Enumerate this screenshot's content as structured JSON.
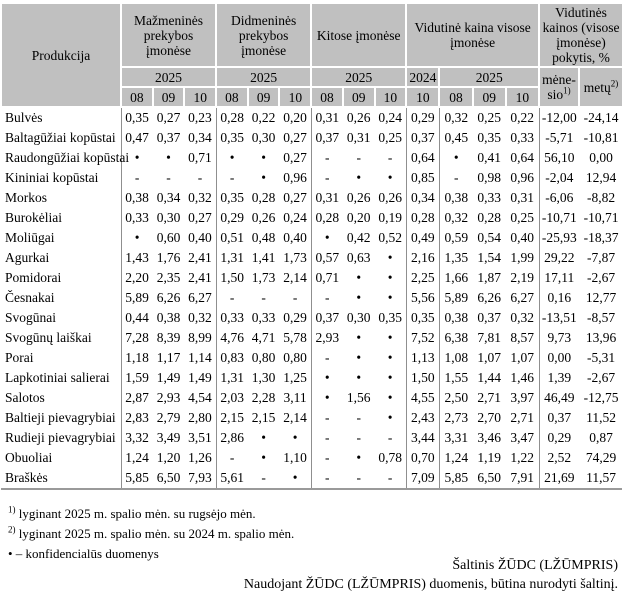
{
  "table": {
    "col_product": "Produkcija",
    "groups": [
      {
        "label": "Mažmeninės prekybos įmonėse"
      },
      {
        "label": "Didmeninės prekybos įmonėse"
      },
      {
        "label": "Kitose įmonėse"
      },
      {
        "label": "Vidutinė kaina visose įmonėse"
      },
      {
        "label": "Vidutinės kainos (visose įmonėse) pokytis, %"
      }
    ],
    "year_2025": "2025",
    "year_2024": "2024",
    "months": [
      "08",
      "09",
      "10"
    ],
    "month_10": "10",
    "change_month": {
      "line1": "mėne-",
      "line2": "sio",
      "sup": "1)"
    },
    "change_year": {
      "label": "metų",
      "sup": "2)"
    },
    "confidential_symbol": "•",
    "no_data_symbol": "-",
    "rows": [
      {
        "product": "Bulvės",
        "values": [
          "0,35",
          "0,27",
          "0,23",
          "0,28",
          "0,22",
          "0,20",
          "0,31",
          "0,26",
          "0,24",
          "0,29",
          "0,32",
          "0,25",
          "0,22",
          "-12,00",
          "-24,14"
        ]
      },
      {
        "product": "Baltagūžiai kopūstai",
        "values": [
          "0,47",
          "0,37",
          "0,34",
          "0,35",
          "0,30",
          "0,27",
          "0,37",
          "0,31",
          "0,25",
          "0,37",
          "0,45",
          "0,35",
          "0,33",
          "-5,71",
          "-10,81"
        ]
      },
      {
        "product": "Raudongūžiai kopūstai",
        "values": [
          "•",
          "•",
          "0,71",
          "•",
          "•",
          "0,27",
          "-",
          "-",
          "-",
          "0,64",
          "•",
          "0,41",
          "0,64",
          "56,10",
          "0,00"
        ]
      },
      {
        "product": "Kininiai kopūstai",
        "values": [
          "-",
          "-",
          "-",
          "-",
          "•",
          "0,96",
          "-",
          "•",
          "•",
          "0,85",
          "-",
          "0,98",
          "0,96",
          "-2,04",
          "12,94"
        ]
      },
      {
        "product": "Morkos",
        "values": [
          "0,38",
          "0,34",
          "0,32",
          "0,35",
          "0,28",
          "0,27",
          "0,31",
          "0,26",
          "0,26",
          "0,34",
          "0,38",
          "0,33",
          "0,31",
          "-6,06",
          "-8,82"
        ]
      },
      {
        "product": "Burokėliai",
        "values": [
          "0,33",
          "0,30",
          "0,27",
          "0,29",
          "0,26",
          "0,24",
          "0,28",
          "0,20",
          "0,19",
          "0,28",
          "0,32",
          "0,28",
          "0,25",
          "-10,71",
          "-10,71"
        ]
      },
      {
        "product": "Moliūgai",
        "values": [
          "•",
          "0,60",
          "0,40",
          "0,51",
          "0,48",
          "0,40",
          "•",
          "0,42",
          "0,52",
          "0,49",
          "0,59",
          "0,54",
          "0,40",
          "-25,93",
          "-18,37"
        ]
      },
      {
        "product": "Agurkai",
        "values": [
          "1,43",
          "1,76",
          "2,41",
          "1,31",
          "1,41",
          "1,73",
          "0,57",
          "0,63",
          "•",
          "2,16",
          "1,35",
          "1,54",
          "1,99",
          "29,22",
          "-7,87"
        ]
      },
      {
        "product": "Pomidorai",
        "values": [
          "2,20",
          "2,35",
          "2,41",
          "1,50",
          "1,73",
          "2,14",
          "0,71",
          "•",
          "•",
          "2,25",
          "1,66",
          "1,87",
          "2,19",
          "17,11",
          "-2,67"
        ]
      },
      {
        "product": "Česnakai",
        "values": [
          "5,89",
          "6,26",
          "6,27",
          "-",
          "-",
          "-",
          "-",
          "•",
          "•",
          "5,56",
          "5,89",
          "6,26",
          "6,27",
          "0,16",
          "12,77"
        ]
      },
      {
        "product": "Svogūnai",
        "values": [
          "0,44",
          "0,38",
          "0,32",
          "0,33",
          "0,33",
          "0,29",
          "0,37",
          "0,30",
          "0,35",
          "0,35",
          "0,38",
          "0,37",
          "0,32",
          "-13,51",
          "-8,57"
        ]
      },
      {
        "product": "Svogūnų laiškai",
        "values": [
          "7,28",
          "8,39",
          "8,99",
          "4,76",
          "4,71",
          "5,78",
          "2,93",
          "•",
          "•",
          "7,52",
          "6,38",
          "7,81",
          "8,57",
          "9,73",
          "13,96"
        ]
      },
      {
        "product": "Porai",
        "values": [
          "1,18",
          "1,17",
          "1,14",
          "0,83",
          "0,80",
          "0,80",
          "-",
          "•",
          "•",
          "1,13",
          "1,08",
          "1,07",
          "1,07",
          "0,00",
          "-5,31"
        ]
      },
      {
        "product": "Lapkotiniai salierai",
        "values": [
          "1,59",
          "1,49",
          "1,49",
          "1,31",
          "1,30",
          "1,25",
          "•",
          "•",
          "•",
          "1,50",
          "1,55",
          "1,44",
          "1,46",
          "1,39",
          "-2,67"
        ]
      },
      {
        "product": "Salotos",
        "values": [
          "2,87",
          "2,93",
          "4,54",
          "2,03",
          "2,28",
          "3,11",
          "•",
          "1,56",
          "•",
          "4,55",
          "2,50",
          "2,71",
          "3,97",
          "46,49",
          "-12,75"
        ]
      },
      {
        "product": "Baltieji pievagrybiai",
        "values": [
          "2,83",
          "2,79",
          "2,80",
          "2,15",
          "2,15",
          "2,14",
          "-",
          "-",
          "•",
          "2,43",
          "2,73",
          "2,70",
          "2,71",
          "0,37",
          "11,52"
        ]
      },
      {
        "product": "Rudieji pievagrybiai",
        "values": [
          "3,32",
          "3,49",
          "3,51",
          "2,86",
          "•",
          "•",
          "-",
          "-",
          "-",
          "3,44",
          "3,31",
          "3,46",
          "3,47",
          "0,29",
          "0,87"
        ]
      },
      {
        "product": "Obuoliai",
        "values": [
          "1,24",
          "1,20",
          "1,26",
          "-",
          "•",
          "1,10",
          "-",
          "•",
          "0,78",
          "0,70",
          "1,24",
          "1,19",
          "1,22",
          "2,52",
          "74,29"
        ]
      },
      {
        "product": "Braškės",
        "values": [
          "5,85",
          "6,50",
          "7,93",
          "5,61",
          "-",
          "•",
          "-",
          "-",
          "-",
          "7,09",
          "5,85",
          "6,50",
          "7,91",
          "21,69",
          "11,57"
        ]
      }
    ]
  },
  "footnotes": [
    {
      "sup": "1)",
      "text": " lyginant 2025 m. spalio mėn. su rugsėjo mėn."
    },
    {
      "sup": "2)",
      "text": " lyginant 2025 m. spalio mėn. su 2024 m. spalio mėn."
    },
    {
      "sup": "",
      "text": "• – konfidencialūs duomenys"
    }
  ],
  "source": {
    "line1": "Šaltinis  ŽŪDC (LŽŪMPRIS)",
    "line2": "Naudojant ŽŪDC (LŽŪMPRIS) duomenis, būtina nurodyti šaltinį."
  },
  "colors": {
    "header_bg": "#c0c0c0",
    "grid_gray": "#8f8f8f",
    "text": "#000000"
  }
}
